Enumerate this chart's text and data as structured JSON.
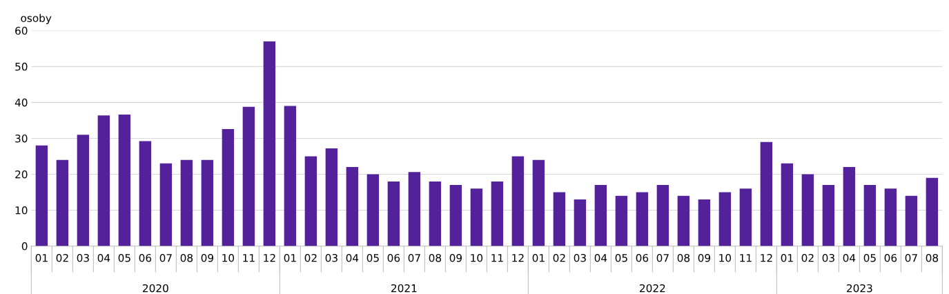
{
  "chart_data": {
    "type": "bar",
    "ylabel": "osoby",
    "categories": [
      "01",
      "02",
      "03",
      "04",
      "05",
      "06",
      "07",
      "08",
      "09",
      "10",
      "11",
      "12",
      "01",
      "02",
      "03",
      "04",
      "05",
      "06",
      "07",
      "08",
      "09",
      "10",
      "11",
      "12",
      "01",
      "02",
      "03",
      "04",
      "05",
      "06",
      "07",
      "08",
      "09",
      "10",
      "11",
      "12",
      "01",
      "02",
      "03",
      "04",
      "05",
      "06",
      "07",
      "08"
    ],
    "values": [
      28,
      24,
      31,
      36.4,
      36.6,
      29.2,
      23,
      24,
      24,
      32.6,
      38.8,
      57,
      39,
      25,
      27.2,
      22,
      20,
      18,
      20.6,
      18,
      17,
      16,
      18,
      25,
      24,
      15,
      13,
      17,
      14,
      15,
      17,
      14,
      13,
      15,
      16,
      29,
      23,
      20,
      17,
      22,
      17,
      16,
      14,
      19
    ],
    "color": "#53229a",
    "ylim": [
      0,
      60
    ],
    "yticks": [
      0,
      10,
      20,
      30,
      40,
      50,
      60
    ],
    "grid": "y",
    "legend": false,
    "annotations": [
      "2020",
      "2021",
      "2022",
      "2023"
    ]
  }
}
